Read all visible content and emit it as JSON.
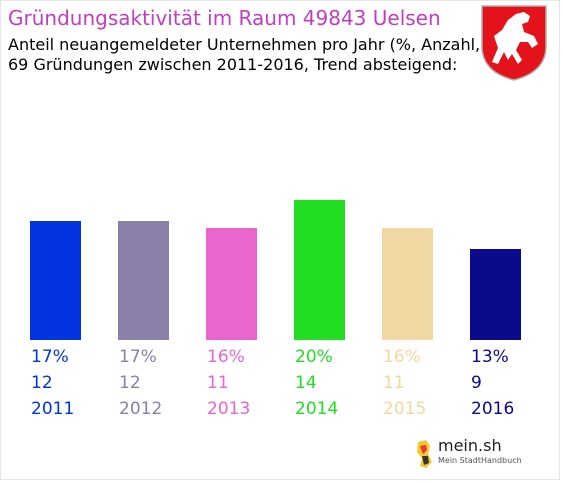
{
  "header": {
    "title": "Gründungsaktivität im Raum 49843 Uelsen",
    "subtitle_line1": "Anteil neuangemeldeter Unternehmen pro Jahr (%, Anzahl, Jahr)",
    "subtitle_line2": "69 Gründungen zwischen 2011-2016, Trend absteigend:"
  },
  "chart_data": {
    "type": "bar",
    "categories": [
      "2011",
      "2012",
      "2013",
      "2014",
      "2015",
      "2016"
    ],
    "values": [
      17,
      17,
      16,
      20,
      16,
      13
    ],
    "percent_labels": [
      "17%",
      "17%",
      "16%",
      "20%",
      "16%",
      "13%"
    ],
    "counts": [
      "12",
      "12",
      "11",
      "14",
      "11",
      "9"
    ],
    "colors": [
      "#0433e0",
      "#8a80aa",
      "#ea66cc",
      "#22dd22",
      "#f0d8a2",
      "#0a0a8a"
    ],
    "ylim": [
      0,
      20
    ],
    "grid": false,
    "legend": "none"
  },
  "branding": {
    "logo_text": "mein.sh",
    "tagline": "Mein StadtHandbuch"
  }
}
